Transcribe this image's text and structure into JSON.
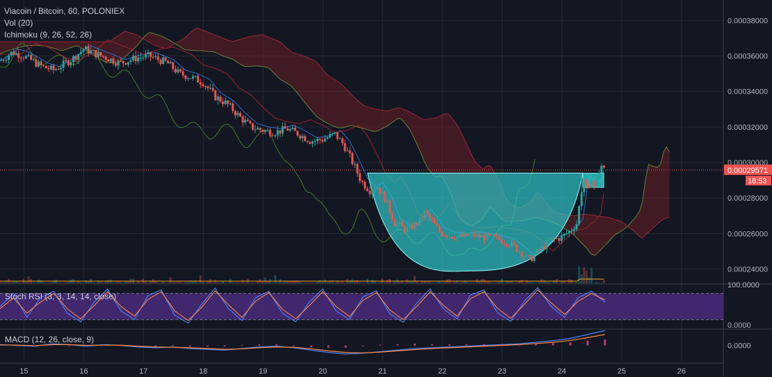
{
  "header": {
    "symbol_line": "Viacoin / Bitcoin, 60, POLONIEX",
    "volume_line": "Vol (20)",
    "ichimoku_line": "Ichimoku (9, 26, 52, 26)"
  },
  "indicators": {
    "stoch_label": "Stoch RSI (3, 3, 14, 14, close)",
    "macd_label": "MACD (12, 26, close, 9)"
  },
  "price_axis": {
    "ticks": [
      "0.00038000",
      "0.00036000",
      "0.00034000",
      "0.00032000",
      "0.00030000",
      "0.00028000",
      "0.00026000",
      "0.00024000"
    ],
    "current_price": "0.00029571",
    "countdown": "18:53"
  },
  "stoch_axis": {
    "ticks": [
      "100.0000",
      "0.0000"
    ]
  },
  "macd_axis": {
    "ticks": [
      "0.0000"
    ]
  },
  "time_axis": {
    "ticks": [
      "15",
      "16",
      "17",
      "18",
      "19",
      "20",
      "21",
      "22",
      "23",
      "24",
      "25",
      "26"
    ]
  },
  "colors": {
    "background": "#131722",
    "up": "#26a69a",
    "down": "#ef5350",
    "cup": "#2ec4c6",
    "stoch_band": "#4a2a7a",
    "price_line": "#ef5350"
  },
  "chart_data": [
    {
      "type": "candlestick",
      "title": "Viacoin / Bitcoin, 60, POLONIEX",
      "x_unit": "day of month",
      "xlim": [
        14.6,
        26.7
      ],
      "ylim": [
        0.000232,
        0.0003915
      ],
      "current_price": 0.00029571,
      "price_path": [
        [
          14.55,
          0.000356
        ],
        [
          14.8,
          0.000362
        ],
        [
          15.0,
          0.00036
        ],
        [
          15.3,
          0.000354
        ],
        [
          15.5,
          0.000352
        ],
        [
          15.8,
          0.000358
        ],
        [
          16.0,
          0.000364
        ],
        [
          16.3,
          0.00036
        ],
        [
          16.6,
          0.000356
        ],
        [
          16.9,
          0.000359
        ],
        [
          17.1,
          0.00036
        ],
        [
          17.4,
          0.000356
        ],
        [
          17.6,
          0.00035
        ],
        [
          17.8,
          0.000348
        ],
        [
          18.0,
          0.000345
        ],
        [
          18.2,
          0.000337
        ],
        [
          18.4,
          0.000333
        ],
        [
          18.6,
          0.000326
        ],
        [
          18.8,
          0.00032
        ],
        [
          19.0,
          0.000318
        ],
        [
          19.2,
          0.000317
        ],
        [
          19.4,
          0.000319
        ],
        [
          19.6,
          0.000316
        ],
        [
          19.8,
          0.000312
        ],
        [
          20.0,
          0.000313
        ],
        [
          20.2,
          0.000316
        ],
        [
          20.35,
          0.00031
        ],
        [
          20.5,
          0.0003
        ],
        [
          20.65,
          0.000289
        ],
        [
          20.8,
          0.000284
        ],
        [
          20.9,
          0.000287
        ],
        [
          21.05,
          0.000279
        ],
        [
          21.2,
          0.000266
        ],
        [
          21.4,
          0.000262
        ],
        [
          21.6,
          0.000266
        ],
        [
          21.7,
          0.000272
        ],
        [
          21.8,
          0.000268
        ],
        [
          21.95,
          0.000261
        ],
        [
          22.1,
          0.000259
        ],
        [
          22.3,
          0.000258
        ],
        [
          22.5,
          0.000259
        ],
        [
          22.7,
          0.000258
        ],
        [
          22.9,
          0.000257
        ],
        [
          23.1,
          0.000255
        ],
        [
          23.3,
          0.00025
        ],
        [
          23.45,
          0.000245
        ],
        [
          23.6,
          0.00025
        ],
        [
          23.8,
          0.000256
        ],
        [
          24.0,
          0.000258
        ],
        [
          24.15,
          0.000262
        ],
        [
          24.25,
          0.000266
        ],
        [
          24.35,
          0.00029
        ],
        [
          24.45,
          0.000288
        ],
        [
          24.55,
          0.000287
        ],
        [
          24.65,
          0.0003
        ],
        [
          24.72,
          0.000296
        ]
      ],
      "cup_pattern": {
        "rim_left_x": 20.75,
        "rim_right_x": 24.35,
        "rim_y": 0.000294,
        "bottom_x": 22.5,
        "bottom_y": 0.000239
      },
      "breakout_box": {
        "x": [
          24.35,
          24.7
        ],
        "y": [
          0.000286,
          0.000294
        ]
      }
    },
    {
      "type": "line",
      "title": "Stoch RSI (3, 3, 14, 14, close)",
      "ylim": [
        0,
        100
      ],
      "band": [
        20,
        80
      ],
      "series": [
        {
          "color": "#4c84ff",
          "values": [
            50,
            80,
            25,
            70,
            85,
            35,
            15,
            60,
            90,
            40,
            20,
            75,
            88,
            30,
            12,
            55,
            92,
            45,
            18,
            70,
            85,
            35,
            15,
            60,
            90,
            40,
            20,
            72,
            86,
            33,
            14,
            58,
            90,
            44,
            22,
            76,
            88,
            36,
            16,
            62,
            93,
            50,
            25,
            70,
            85,
            60
          ]
        },
        {
          "color": "#ff8a3d",
          "values": [
            45,
            70,
            35,
            60,
            80,
            45,
            22,
            52,
            84,
            50,
            28,
            66,
            84,
            40,
            18,
            48,
            86,
            54,
            25,
            62,
            82,
            44,
            22,
            52,
            84,
            50,
            27,
            64,
            82,
            42,
            20,
            50,
            84,
            52,
            28,
            68,
            84,
            46,
            23,
            55,
            88,
            58,
            32,
            62,
            80,
            65
          ]
        }
      ]
    },
    {
      "type": "line",
      "title": "MACD (12, 26, close, 9)",
      "ylim": [
        -1,
        1
      ],
      "series": [
        {
          "color": "#4c84ff",
          "values": [
            0.05,
            0.0,
            -0.05,
            0.1,
            0.05,
            -0.05,
            0.05,
            0.0,
            -0.1,
            -0.15,
            -0.1,
            -0.2,
            -0.25,
            -0.3,
            -0.2,
            -0.1,
            -0.05,
            -0.15,
            -0.3,
            -0.45,
            -0.55,
            -0.5,
            -0.4,
            -0.3,
            -0.2,
            -0.15,
            -0.1,
            -0.05,
            0.0,
            0.05,
            0.1,
            0.2,
            0.3,
            0.45,
            0.7,
            0.95
          ]
        },
        {
          "color": "#ff8a3d",
          "values": [
            0.03,
            0.02,
            -0.02,
            0.05,
            0.05,
            0.0,
            0.02,
            0.01,
            -0.05,
            -0.1,
            -0.12,
            -0.15,
            -0.2,
            -0.25,
            -0.22,
            -0.15,
            -0.1,
            -0.12,
            -0.22,
            -0.35,
            -0.45,
            -0.48,
            -0.43,
            -0.35,
            -0.27,
            -0.2,
            -0.15,
            -0.1,
            -0.05,
            0.0,
            0.05,
            0.12,
            0.2,
            0.32,
            0.5,
            0.7
          ]
        }
      ]
    }
  ]
}
